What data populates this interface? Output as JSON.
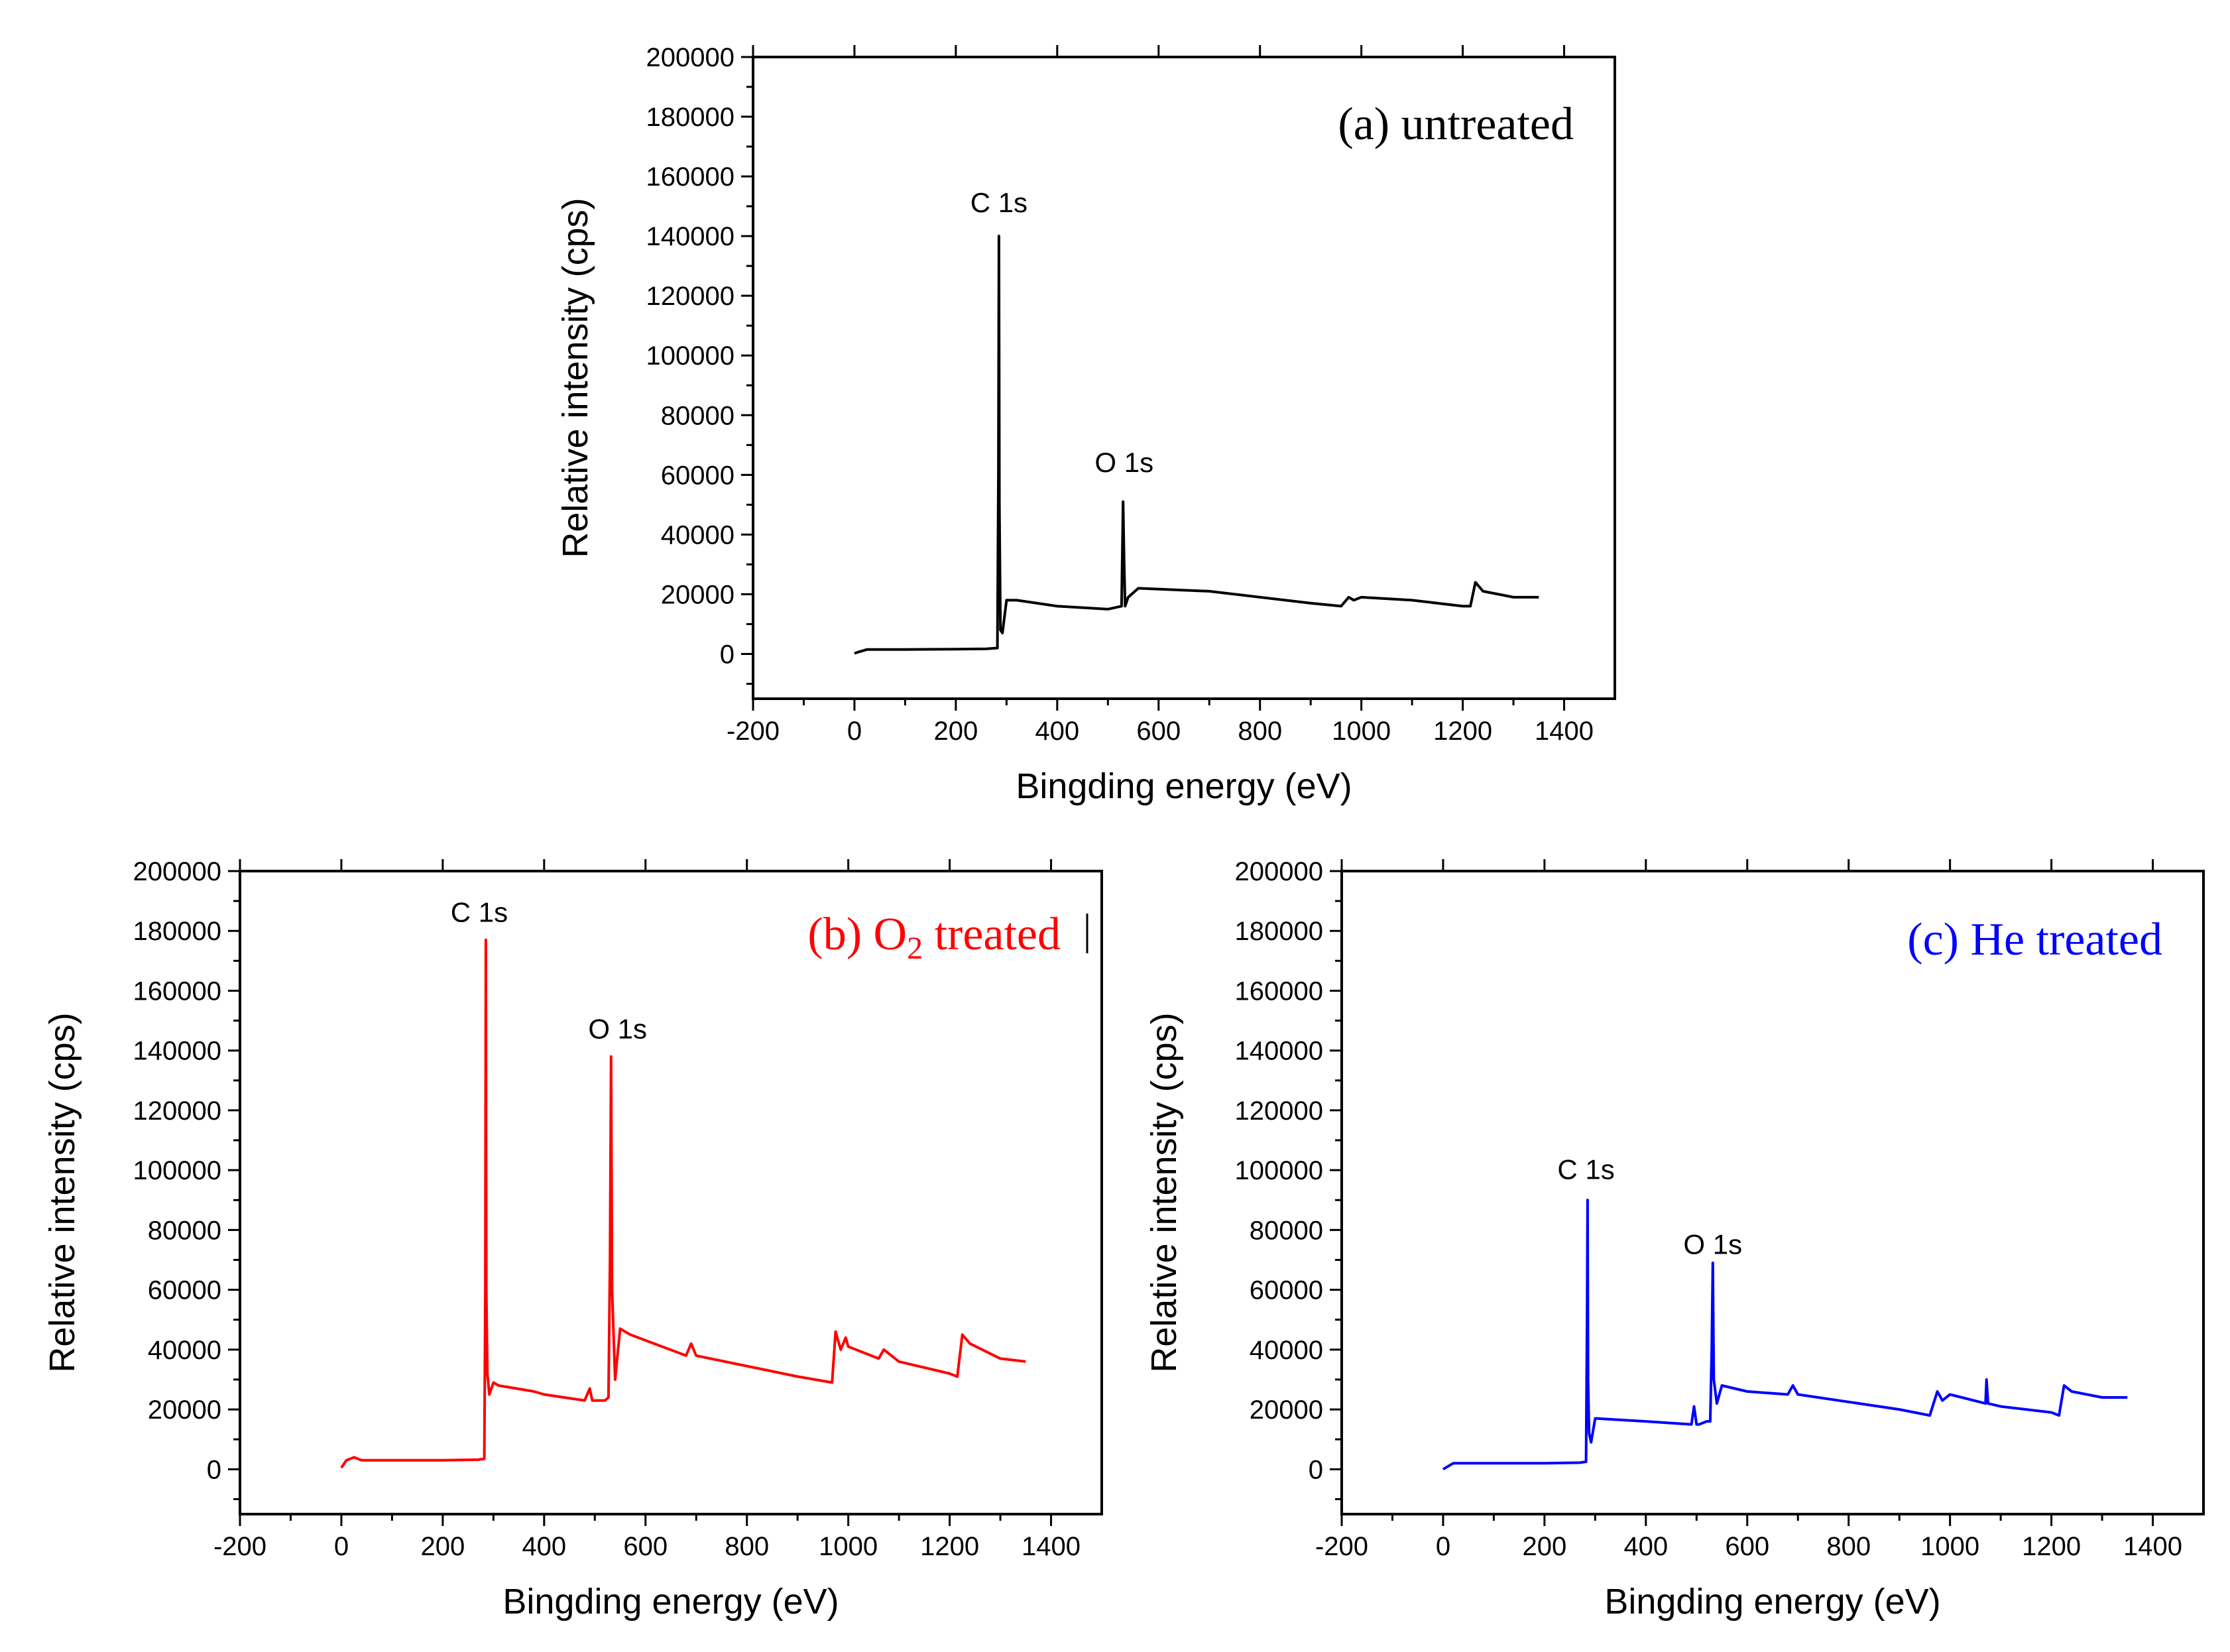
{
  "chart_data": [
    {
      "type": "line",
      "id": "a",
      "title": "(a) untreated",
      "title_color": "#000000",
      "line_color": "#000000",
      "xlabel": "Bingding energy (eV)",
      "ylabel": "Relative intensity (cps)",
      "xlim": [
        -200,
        1500
      ],
      "ylim": [
        -15000,
        200000
      ],
      "xticks": [
        -200,
        0,
        200,
        400,
        600,
        800,
        1000,
        1200,
        1400
      ],
      "yticks": [
        0,
        20000,
        40000,
        60000,
        80000,
        100000,
        120000,
        140000,
        160000,
        180000,
        200000
      ],
      "annotations": [
        {
          "text": "C 1s",
          "x": 285,
          "y": 148000
        },
        {
          "text": "O 1s",
          "x": 532,
          "y": 61000
        }
      ],
      "series": [
        {
          "name": "untreated",
          "x": [
            0,
            5,
            25,
            100,
            200,
            260,
            282,
            284,
            285,
            286,
            288,
            292,
            300,
            320,
            400,
            500,
            527,
            530,
            532,
            534,
            540,
            560,
            700,
            900,
            960,
            975,
            985,
            1000,
            1100,
            1200,
            1215,
            1225,
            1240,
            1300,
            1350
          ],
          "y": [
            200,
            500,
            1500,
            1500,
            1600,
            1700,
            2000,
            60000,
            140000,
            50000,
            8000,
            7000,
            18000,
            18000,
            16000,
            15000,
            16000,
            51000,
            30000,
            16000,
            19000,
            22000,
            21000,
            17000,
            16000,
            19000,
            18000,
            19000,
            18000,
            16000,
            16000,
            24000,
            21000,
            19000,
            19000
          ]
        }
      ]
    },
    {
      "type": "line",
      "id": "b",
      "title_prefix": "(b) O",
      "title_sub": "2",
      "title_suffix": " treated",
      "title_color": "#ff0000",
      "line_color": "#ff0000",
      "xlabel": "Bingding energy (eV)",
      "ylabel": "Relative intensity (cps)",
      "xlim": [
        -200,
        1500
      ],
      "ylim": [
        -15000,
        200000
      ],
      "xticks": [
        -200,
        0,
        200,
        400,
        600,
        800,
        1000,
        1200,
        1400
      ],
      "yticks": [
        0,
        20000,
        40000,
        60000,
        80000,
        100000,
        120000,
        140000,
        160000,
        180000,
        200000
      ],
      "annotations": [
        {
          "text": "C 1s",
          "x": 272,
          "y": 183000
        },
        {
          "text": "O 1s",
          "x": 545,
          "y": 144000
        }
      ],
      "series": [
        {
          "name": "O2 treated",
          "x": [
            0,
            10,
            25,
            40,
            100,
            200,
            270,
            282,
            284,
            285,
            286,
            288,
            292,
            300,
            310,
            380,
            400,
            480,
            490,
            495,
            520,
            527,
            530,
            532,
            534,
            540,
            550,
            570,
            680,
            690,
            700,
            900,
            968,
            975,
            985,
            995,
            1000,
            1060,
            1070,
            1100,
            1200,
            1215,
            1225,
            1240,
            1300,
            1350
          ],
          "y": [
            500,
            3000,
            4000,
            3000,
            3000,
            3000,
            3200,
            3500,
            60000,
            177000,
            60000,
            32000,
            25000,
            29000,
            28000,
            26000,
            25000,
            23000,
            27000,
            23000,
            23000,
            24000,
            70000,
            138000,
            60000,
            30000,
            47000,
            45000,
            38000,
            42000,
            38000,
            31000,
            29000,
            46000,
            40000,
            44000,
            41000,
            37000,
            40000,
            36000,
            32000,
            31000,
            45000,
            42000,
            37000,
            36000
          ]
        }
      ]
    },
    {
      "type": "line",
      "id": "c",
      "title": "(c) He treated",
      "title_color": "#0000ff",
      "line_color": "#0000ff",
      "xlabel": "Bingding energy (eV)",
      "ylabel": "Relative intensity (cps)",
      "xlim": [
        -200,
        1500
      ],
      "ylim": [
        -15000,
        200000
      ],
      "xticks": [
        -200,
        0,
        200,
        400,
        600,
        800,
        1000,
        1200,
        1400
      ],
      "yticks": [
        0,
        20000,
        40000,
        60000,
        80000,
        100000,
        120000,
        140000,
        160000,
        180000,
        200000
      ],
      "annotations": [
        {
          "text": "C 1s",
          "x": 282,
          "y": 97000
        },
        {
          "text": "O 1s",
          "x": 532,
          "y": 72000
        }
      ],
      "series": [
        {
          "name": "He treated",
          "x": [
            0,
            20,
            40,
            100,
            200,
            270,
            282,
            284,
            285,
            286,
            288,
            292,
            300,
            400,
            490,
            495,
            500,
            505,
            520,
            527,
            530,
            532,
            534,
            540,
            550,
            600,
            680,
            690,
            700,
            900,
            960,
            975,
            985,
            1000,
            1070,
            1072,
            1075,
            1100,
            1200,
            1215,
            1225,
            1240,
            1300,
            1350
          ],
          "y": [
            0,
            2000,
            2000,
            2000,
            2000,
            2200,
            2500,
            50000,
            90000,
            30000,
            12000,
            9000,
            17000,
            16000,
            15000,
            21000,
            15000,
            15000,
            16000,
            16000,
            40000,
            69000,
            30000,
            22000,
            28000,
            26000,
            25000,
            28000,
            25000,
            20000,
            18000,
            26000,
            23000,
            25000,
            22000,
            30000,
            22000,
            21000,
            19000,
            18000,
            28000,
            26000,
            24000,
            24000
          ]
        }
      ]
    }
  ]
}
